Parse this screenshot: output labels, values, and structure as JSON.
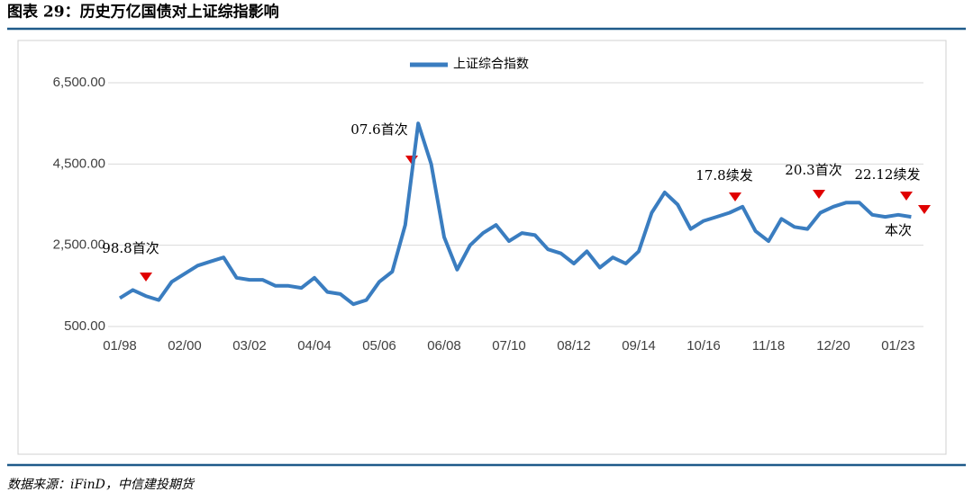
{
  "chart_data": {
    "type": "line",
    "title": "图表 29：历史万亿国债对上证综指影响",
    "source": "数据来源：iFinD，中信建投期货",
    "categories": [
      "01/98",
      null,
      null,
      null,
      null,
      "02/00",
      null,
      null,
      null,
      null,
      "03/02",
      null,
      null,
      null,
      null,
      "04/04",
      null,
      null,
      null,
      null,
      "05/06",
      null,
      null,
      null,
      null,
      "06/08",
      null,
      null,
      null,
      null,
      "07/10",
      null,
      null,
      null,
      null,
      "08/12",
      null,
      null,
      null,
      null,
      "09/14",
      null,
      null,
      null,
      null,
      "10/16",
      null,
      null,
      null,
      null,
      "11/18",
      null,
      null,
      null,
      null,
      "12/20",
      null,
      null,
      null,
      null,
      "01/23",
      null
    ],
    "series": [
      {
        "name": "上证综合指数",
        "color": "#3a7dc0",
        "values": [
          1200,
          1400,
          1250,
          1150,
          1600,
          1800,
          2000,
          2100,
          2200,
          1700,
          1650,
          1650,
          1500,
          1500,
          1450,
          1700,
          1350,
          1300,
          1050,
          1150,
          1600,
          1850,
          3000,
          5500,
          4500,
          2700,
          1900,
          2500,
          2800,
          3000,
          2600,
          2800,
          2750,
          2400,
          2300,
          2050,
          2350,
          1950,
          2200,
          2050,
          2350,
          3300,
          3800,
          3500,
          2900,
          3100,
          3200,
          3300,
          3450,
          2850,
          2600,
          3150,
          2950,
          2900,
          3300,
          3450,
          3550,
          3550,
          3250,
          3200,
          3250,
          3200
        ]
      }
    ],
    "ylim": [
      500,
      6500
    ],
    "yticks": [
      {
        "value": 500,
        "label": "500.00"
      },
      {
        "value": 2500,
        "label": "2,500.00"
      },
      {
        "value": 4500,
        "label": "4,500.00"
      },
      {
        "value": 6500,
        "label": "6,500.00"
      }
    ],
    "grid": true,
    "annotations": [
      "98.8首次",
      "07.6首次",
      "17.8续发",
      "20.3首次",
      "22.12续发",
      "本次"
    ]
  }
}
